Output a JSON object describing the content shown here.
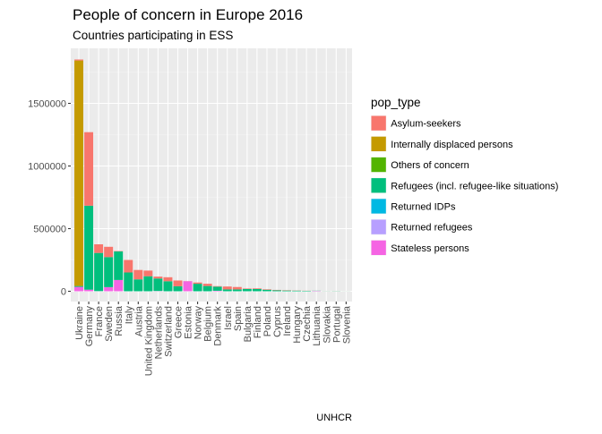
{
  "chart_data": {
    "type": "bar",
    "stacked": true,
    "title": "People of concern in Europe 2016",
    "subtitle": "Countries participating in ESS",
    "caption": "UNHCR",
    "xlabel": "",
    "ylabel": "",
    "ylim": [
      0,
      1900000
    ],
    "yticks": [
      0,
      500000,
      1000000,
      1500000
    ],
    "ytick_labels": [
      "0",
      "500000",
      "1000000",
      "1500000"
    ],
    "grid": true,
    "legend": {
      "title": "pop_type",
      "placement": "right"
    },
    "categories": [
      "Ukraine",
      "Germany",
      "France",
      "Sweden",
      "Russia",
      "Italy",
      "Austria",
      "United Kingdom",
      "Netherlands",
      "Switzerland",
      "Greece",
      "Estonia",
      "Norway",
      "Belgium",
      "Denmark",
      "Israel",
      "Spain",
      "Bulgaria",
      "Finland",
      "Poland",
      "Cyprus",
      "Ireland",
      "Hungary",
      "Czechia",
      "Lithuania",
      "Slovakia",
      "Portugal",
      "Slovenia"
    ],
    "series": [
      {
        "name": "Stateless persons",
        "color": "#F564E3",
        "values": [
          35000,
          13000,
          1000,
          33000,
          90000,
          0,
          0,
          0,
          2000,
          0,
          0,
          80000,
          0,
          0,
          4000,
          0,
          0,
          0,
          0,
          0,
          0,
          0,
          0,
          0,
          3000,
          0,
          0,
          0
        ]
      },
      {
        "name": "Returned refugees",
        "color": "#B79FFF",
        "values": [
          0,
          0,
          0,
          0,
          0,
          0,
          0,
          0,
          0,
          0,
          0,
          0,
          0,
          0,
          0,
          0,
          0,
          0,
          0,
          0,
          0,
          0,
          0,
          0,
          0,
          0,
          0,
          0
        ]
      },
      {
        "name": "Returned IDPs",
        "color": "#00B9E3",
        "values": [
          0,
          0,
          0,
          0,
          0,
          0,
          0,
          0,
          0,
          0,
          0,
          0,
          0,
          0,
          0,
          0,
          0,
          0,
          0,
          0,
          0,
          0,
          0,
          0,
          0,
          0,
          0,
          0
        ]
      },
      {
        "name": "Refugees (incl. refugee-like situations)",
        "color": "#00BF7D",
        "values": [
          7000,
          670000,
          305000,
          240000,
          228000,
          150000,
          95000,
          120000,
          100000,
          80000,
          40000,
          0,
          60000,
          42000,
          33000,
          15000,
          15000,
          18000,
          18000,
          12000,
          8000,
          6000,
          5000,
          3500,
          1500,
          1000,
          1500,
          500
        ]
      },
      {
        "name": "Others of concern",
        "color": "#53B400",
        "values": [
          0,
          0,
          0,
          0,
          0,
          0,
          0,
          0,
          0,
          0,
          0,
          0,
          0,
          0,
          0,
          0,
          0,
          0,
          0,
          0,
          0,
          0,
          0,
          0,
          0,
          0,
          0,
          0
        ]
      },
      {
        "name": "Internally displaced persons",
        "color": "#C49A00",
        "values": [
          1800000,
          0,
          0,
          0,
          0,
          0,
          0,
          0,
          0,
          0,
          0,
          0,
          0,
          0,
          0,
          0,
          0,
          0,
          0,
          0,
          0,
          0,
          0,
          0,
          0,
          0,
          0,
          0
        ]
      },
      {
        "name": "Asylum-seekers",
        "color": "#F8766D",
        "values": [
          8000,
          587000,
          69000,
          82000,
          3000,
          100000,
          75000,
          45000,
          15000,
          32000,
          46000,
          1000,
          10000,
          18000,
          4000,
          23000,
          19000,
          4000,
          5000,
          4000,
          3000,
          2500,
          1500,
          1000,
          200,
          500,
          500,
          300
        ]
      }
    ],
    "legend_order": [
      "Asylum-seekers",
      "Internally displaced persons",
      "Others of concern",
      "Refugees (incl. refugee-like situations)",
      "Returned IDPs",
      "Returned refugees",
      "Stateless persons"
    ]
  }
}
